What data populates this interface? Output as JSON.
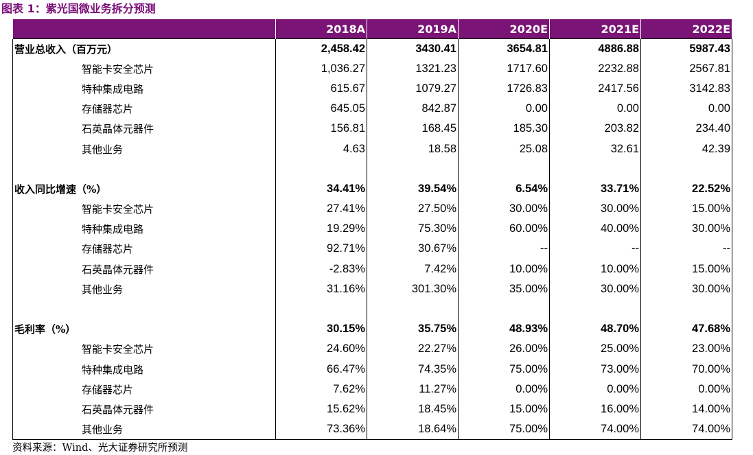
{
  "title": "图表 1：紫光国微业务拆分预测",
  "columns": [
    "2018A",
    "2019A",
    "2020E",
    "2021E",
    "2022E"
  ],
  "rows": [
    {
      "type": "major",
      "label": "营业总收入（百万元）",
      "values": [
        "2,458.42",
        "3430.41",
        "3654.81",
        "4886.88",
        "5987.43"
      ]
    },
    {
      "type": "sub",
      "label": "智能卡安全芯片",
      "values": [
        "1,036.27",
        "1321.23",
        "1717.60",
        "2232.88",
        "2567.81"
      ]
    },
    {
      "type": "sub",
      "label": "特种集成电路",
      "values": [
        "615.67",
        "1079.27",
        "1726.83",
        "2417.56",
        "3142.83"
      ]
    },
    {
      "type": "sub",
      "label": "存储器芯片",
      "values": [
        "645.05",
        "842.87",
        "0.00",
        "0.00",
        "0.00"
      ]
    },
    {
      "type": "sub",
      "label": "石英晶体元器件",
      "values": [
        "156.81",
        "168.45",
        "185.30",
        "203.82",
        "234.40"
      ]
    },
    {
      "type": "sub",
      "label": "其他业务",
      "values": [
        "4.63",
        "18.58",
        "25.08",
        "32.61",
        "42.39"
      ]
    },
    {
      "type": "blank",
      "label": "",
      "values": [
        "",
        "",
        "",
        "",
        ""
      ]
    },
    {
      "type": "major",
      "label": "收入同比增速（%）",
      "values": [
        "34.41%",
        "39.54%",
        "6.54%",
        "33.71%",
        "22.52%"
      ]
    },
    {
      "type": "sub",
      "label": "智能卡安全芯片",
      "values": [
        "27.41%",
        "27.50%",
        "30.00%",
        "30.00%",
        "15.00%"
      ]
    },
    {
      "type": "sub",
      "label": "特种集成电路",
      "values": [
        "19.29%",
        "75.30%",
        "60.00%",
        "40.00%",
        "30.00%"
      ]
    },
    {
      "type": "sub",
      "label": "存储器芯片",
      "values": [
        "92.71%",
        "30.67%",
        "--",
        "--",
        "--"
      ]
    },
    {
      "type": "sub",
      "label": "石英晶体元器件",
      "values": [
        "-2.83%",
        "7.42%",
        "10.00%",
        "10.00%",
        "15.00%"
      ]
    },
    {
      "type": "sub",
      "label": "其他业务",
      "values": [
        "31.16%",
        "301.30%",
        "35.00%",
        "30.00%",
        "30.00%"
      ]
    },
    {
      "type": "blank",
      "label": "",
      "values": [
        "",
        "",
        "",
        "",
        ""
      ]
    },
    {
      "type": "major",
      "label": "毛利率（%）",
      "values": [
        "30.15%",
        "35.75%",
        "48.93%",
        "48.70%",
        "47.68%"
      ]
    },
    {
      "type": "sub",
      "label": "智能卡安全芯片",
      "values": [
        "24.60%",
        "22.27%",
        "26.00%",
        "25.00%",
        "23.00%"
      ]
    },
    {
      "type": "sub",
      "label": "特种集成电路",
      "values": [
        "66.47%",
        "74.35%",
        "75.00%",
        "73.00%",
        "70.00%"
      ]
    },
    {
      "type": "sub",
      "label": "存储器芯片",
      "values": [
        "7.62%",
        "11.27%",
        "0.00%",
        "0.00%",
        "0.00%"
      ]
    },
    {
      "type": "sub",
      "label": "石英晶体元器件",
      "values": [
        "15.62%",
        "18.45%",
        "15.00%",
        "16.00%",
        "14.00%"
      ]
    },
    {
      "type": "sub",
      "label": "其他业务",
      "values": [
        "73.36%",
        "18.64%",
        "75.00%",
        "74.00%",
        "74.00%"
      ]
    }
  ],
  "source": "资料来源：Wind、光大证券研究所预测",
  "colors": {
    "header_bg": "#7a1476",
    "title": "#7a0f78"
  }
}
